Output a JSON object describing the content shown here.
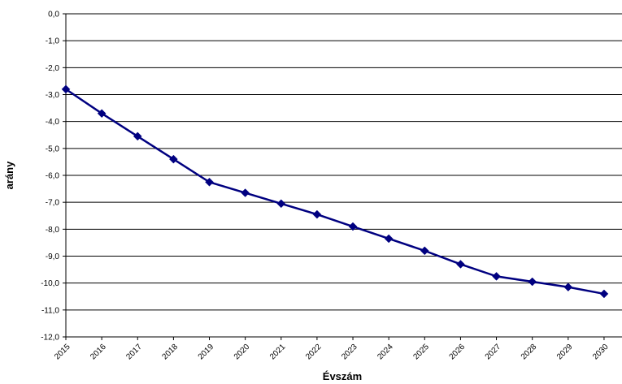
{
  "chart_data": {
    "type": "line",
    "title": "",
    "xlabel": "Évszám",
    "ylabel": "arány",
    "x": [
      "2015",
      "2016",
      "2017",
      "2018",
      "2019",
      "2020",
      "2021",
      "2022",
      "2023",
      "2024",
      "2025",
      "2026",
      "2027",
      "2028",
      "2029",
      "2030"
    ],
    "series": [
      {
        "values": [
          -2.8,
          -3.7,
          -4.55,
          -5.4,
          -6.25,
          -6.65,
          -7.05,
          -7.45,
          -7.9,
          -8.35,
          -8.8,
          -9.3,
          -9.75,
          -9.95,
          -10.15,
          -10.4
        ],
        "color": "#000080",
        "marker": "diamond"
      }
    ],
    "ylim": [
      -12.0,
      0.0
    ],
    "yticks": [
      "0,0",
      "-1,0",
      "-2,0",
      "-3,0",
      "-4,0",
      "-5,0",
      "-6,0",
      "-7,0",
      "-8,0",
      "-9,0",
      "-10,0",
      "-11,0",
      "-12,0"
    ],
    "grid": true,
    "legend": "none",
    "colors": {
      "line": "#000080",
      "grid": "#000000",
      "axis": "#000000"
    }
  }
}
